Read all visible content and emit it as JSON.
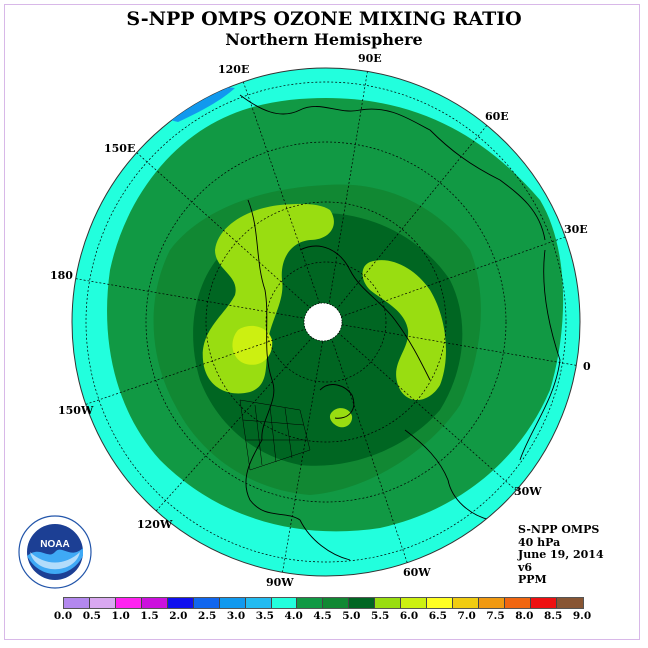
{
  "title": "S-NPP OMPS OZONE MIXING RATIO",
  "subtitle": "Northern Hemisphere",
  "longitude_labels": [
    {
      "id": "lon-90e",
      "text": "90E"
    },
    {
      "id": "lon-60e",
      "text": "60E"
    },
    {
      "id": "lon-120e",
      "text": "120E"
    },
    {
      "id": "lon-150e",
      "text": "150E"
    },
    {
      "id": "lon-30e",
      "text": "30E"
    },
    {
      "id": "lon-180",
      "text": "180"
    },
    {
      "id": "lon-0",
      "text": "0"
    },
    {
      "id": "lon-150w",
      "text": "150W"
    },
    {
      "id": "lon-30w",
      "text": "30W"
    },
    {
      "id": "lon-120w",
      "text": "120W"
    },
    {
      "id": "lon-60w",
      "text": "60W"
    },
    {
      "id": "lon-90w",
      "text": "90W"
    }
  ],
  "info": {
    "instrument": "S-NPP OMPS",
    "pressure": "40 hPa",
    "date": "June 19, 2014",
    "version": "v6",
    "units": "PPM"
  },
  "colorbar": {
    "colors": [
      "#b388ee",
      "#d9a8f0",
      "#ff22f0",
      "#cc11dd",
      "#1010ee",
      "#1166ee",
      "#1199ee",
      "#22bbf0",
      "#22ffdd",
      "#119944",
      "#118833",
      "#006622",
      "#99dd11",
      "#ccf011",
      "#ffff22",
      "#f0cc11",
      "#f09911",
      "#f06611",
      "#ee1111",
      "#885533"
    ],
    "ticks": [
      "0.0",
      "0.5",
      "1.0",
      "1.5",
      "2.0",
      "2.5",
      "3.0",
      "3.5",
      "4.0",
      "4.5",
      "5.0",
      "5.5",
      "6.0",
      "6.5",
      "7.0",
      "7.5",
      "8.0",
      "8.5",
      "9.0"
    ]
  },
  "logo": {
    "text": "NOAA"
  }
}
